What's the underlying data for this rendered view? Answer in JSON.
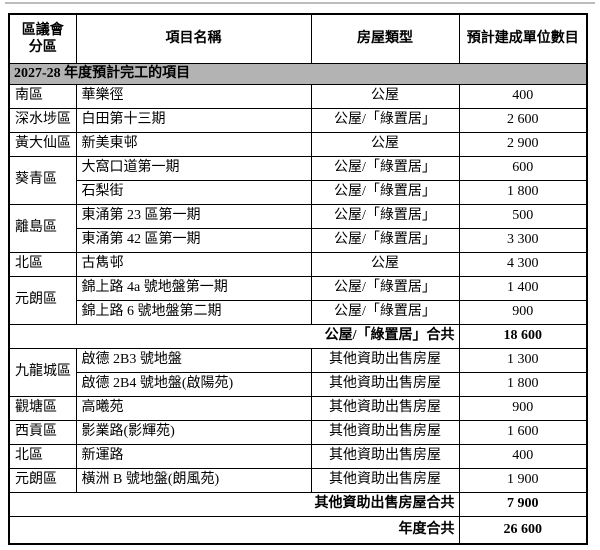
{
  "page": {
    "background": "#ffffff",
    "top_rule_color": "#bdbdbd"
  },
  "table": {
    "border_color": "#000000",
    "section_bg": "#b3b3b3",
    "columns": {
      "district_line1": "區議會",
      "district_line2": "分區",
      "project": "項目名稱",
      "type": "房屋類型",
      "units": "預計建成單位數目"
    },
    "section_title": "2027-28 年度預計完工的項目",
    "rows": [
      {
        "district": "南區",
        "project": "華樂徑",
        "type": "公屋",
        "units": "400"
      },
      {
        "district": "深水埗區",
        "project": "白田第十三期",
        "type": "公屋/「綠置居」",
        "units": "2 600"
      },
      {
        "district": "黃大仙區",
        "project": "新美東邨",
        "type": "公屋",
        "units": "2 900"
      },
      {
        "district": "葵青區",
        "district_rowspan": 2,
        "project": "大窩口道第一期",
        "type": "公屋/「綠置居」",
        "units": "600"
      },
      {
        "district": null,
        "project": "石梨街",
        "type": "公屋/「綠置居」",
        "units": "1 800"
      },
      {
        "district": "離島區",
        "district_rowspan": 2,
        "project": "東涌第 23 區第一期",
        "type": "公屋/「綠置居」",
        "units": "500"
      },
      {
        "district": null,
        "project": "東涌第 42 區第一期",
        "type": "公屋/「綠置居」",
        "units": "3 300"
      },
      {
        "district": "北區",
        "project": "古雋邨",
        "type": "公屋",
        "units": "4 300"
      },
      {
        "district": "元朗區",
        "district_rowspan": 2,
        "project": "錦上路 4a 號地盤第一期",
        "type": "公屋/「綠置居」",
        "units": "1 400"
      },
      {
        "district": null,
        "project": "錦上路 6 號地盤第二期",
        "type": "公屋/「綠置居」",
        "units": "900"
      },
      {
        "label": "公屋/「綠置居」合共",
        "units": "18 600"
      },
      {
        "district": "九龍城區",
        "district_rowspan": 2,
        "project": "啟德 2B3 號地盤",
        "type": "其他資助出售房屋",
        "units": "1 300"
      },
      {
        "district": null,
        "project": "啟德 2B4 號地盤(啟陽苑)",
        "type": "其他資助出售房屋",
        "units": "1 800"
      },
      {
        "district": "觀塘區",
        "project": "高曦苑",
        "type": "其他資助出售房屋",
        "units": "900"
      },
      {
        "district": "西貢區",
        "project": "影業路(影輝苑)",
        "type": "其他資助出售房屋",
        "units": "1 600"
      },
      {
        "district": "北區",
        "project": "新運路",
        "type": "其他資助出售房屋",
        "units": "400"
      },
      {
        "district": "元朗區",
        "project": "橫洲 B 號地盤(朗風苑)",
        "type": "其他資助出售房屋",
        "units": "1 900"
      },
      {
        "label": "其他資助出售房屋合共",
        "units": "7 900"
      },
      {
        "label": "年度合共",
        "units": "26 600",
        "grand": true
      }
    ]
  }
}
